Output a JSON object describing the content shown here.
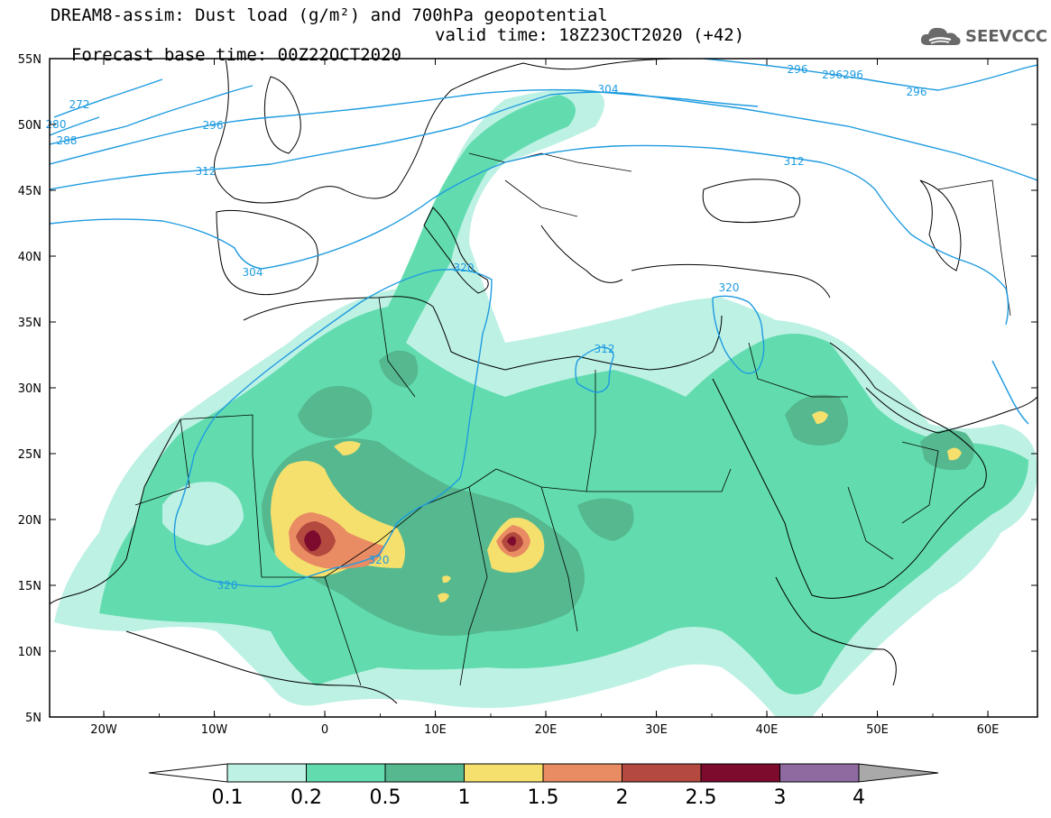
{
  "title": {
    "line1": "DREAM8-assim: Dust load (g/m²) and 700hPa geopotential",
    "line2_base": "Forecast base time: 00Z22OCT2020",
    "line2_valid": "valid time: 18Z23OCT2020 (+42)"
  },
  "logo": {
    "text": "SEEVCCC",
    "icon": "cloud-icon"
  },
  "axes": {
    "lat_labels": [
      "55N",
      "50N",
      "45N",
      "40N",
      "35N",
      "30N",
      "25N",
      "20N",
      "15N",
      "10N",
      "5N"
    ],
    "lon_labels": [
      "20W",
      "10W",
      "0",
      "10E",
      "20E",
      "30E",
      "40E",
      "50E",
      "60E"
    ]
  },
  "contours": {
    "line_color": "#1e9be0",
    "labels": [
      "272",
      "280",
      "288",
      "296",
      "304",
      "312",
      "320",
      "296",
      "296296",
      "296",
      "304",
      "312",
      "320",
      "312",
      "320",
      "320"
    ]
  },
  "colorbar": {
    "levels": [
      "0.1",
      "0.2",
      "0.5",
      "1",
      "1.5",
      "2",
      "2.5",
      "3",
      "4"
    ],
    "colors": [
      "#bdf1e4",
      "#62dcae",
      "#55b88f",
      "#f5e06e",
      "#e98b63",
      "#b3493f",
      "#7c0b2e",
      "#8e6aa0",
      "#a9a9a9"
    ],
    "under_color": "#ffffff",
    "over_color": "#a9a9a9"
  },
  "dust_colors": {
    "light": "#bdf1e4",
    "medium": "#62dcae",
    "dark": "#55b88f",
    "yellow": "#f5e06e",
    "orange": "#e98b63",
    "red": "#b3493f",
    "maroon": "#7c0b2e"
  }
}
